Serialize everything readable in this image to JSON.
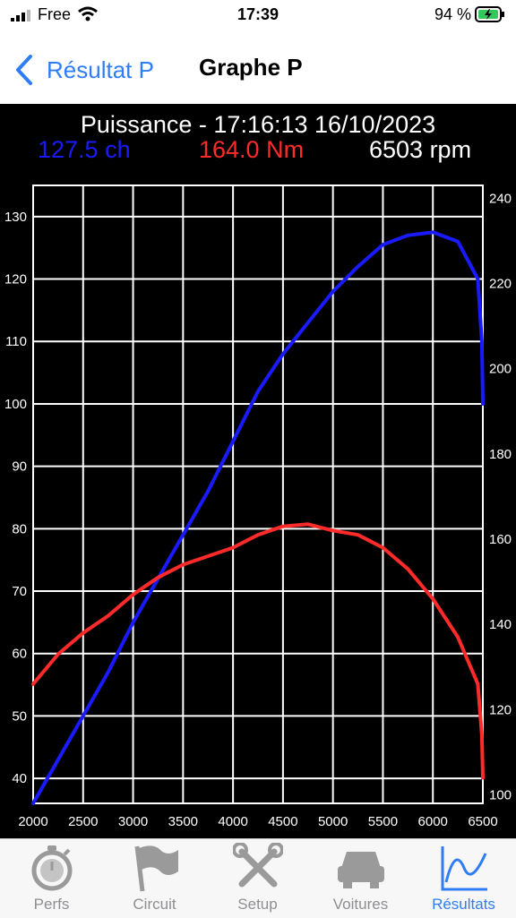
{
  "status_bar": {
    "carrier": "Free",
    "time": "17:39",
    "battery": "94 %"
  },
  "nav": {
    "back_label": "Résultat P",
    "title": "Graphe P"
  },
  "colors": {
    "power": "#1a1aff",
    "torque": "#ff2a2a",
    "accent": "#2f7df6",
    "battery": "#34c759"
  },
  "readout": {
    "title": "Puissance - 17:16:13 16/10/2023",
    "power": "127.5 ch",
    "torque": "164.0 Nm",
    "rpm": "6503 rpm"
  },
  "chart_data": {
    "type": "line",
    "x_ticks": [
      "2000",
      "2500",
      "3000",
      "3500",
      "4000",
      "4500",
      "5000",
      "5500",
      "6000",
      "6500"
    ],
    "y_left_ticks": [
      "40",
      "50",
      "60",
      "70",
      "80",
      "90",
      "100",
      "110",
      "120",
      "130"
    ],
    "y_right_ticks": [
      "100",
      "120",
      "140",
      "160",
      "180",
      "200",
      "220",
      "240"
    ],
    "xlim": [
      2000,
      6500
    ],
    "ylim_left": [
      36,
      135
    ],
    "ylim_right": [
      98,
      243
    ],
    "grid": true,
    "series": [
      {
        "axis": "left",
        "color": "#1a1aff",
        "x": [
          2000,
          2250,
          2500,
          2750,
          3000,
          3250,
          3500,
          3750,
          4000,
          4250,
          4500,
          4750,
          5000,
          5250,
          5500,
          5750,
          6000,
          6250,
          6450,
          6490,
          6500
        ],
        "y": [
          36,
          43,
          50,
          57,
          65,
          72,
          79,
          86,
          94,
          102,
          108,
          113,
          118,
          122,
          125.5,
          127,
          127.5,
          126,
          120,
          110,
          100
        ]
      },
      {
        "axis": "right",
        "color": "#ff2a2a",
        "x": [
          2000,
          2250,
          2500,
          2750,
          3000,
          3250,
          3500,
          3750,
          4000,
          4250,
          4500,
          4750,
          5000,
          5250,
          5500,
          5750,
          6000,
          6250,
          6450,
          6490,
          6500
        ],
        "y": [
          126,
          133,
          138,
          142,
          147,
          151,
          154,
          156,
          158,
          161,
          163,
          163.5,
          162,
          161,
          158,
          153,
          146,
          137,
          126,
          114,
          104
        ]
      }
    ]
  },
  "tabs": [
    {
      "label": "Perfs",
      "icon": "stopwatch-icon",
      "active": false
    },
    {
      "label": "Circuit",
      "icon": "flag-icon",
      "active": false
    },
    {
      "label": "Setup",
      "icon": "tools-icon",
      "active": false
    },
    {
      "label": "Voitures",
      "icon": "car-icon",
      "active": false
    },
    {
      "label": "Résultats",
      "icon": "chart-icon",
      "active": true
    }
  ]
}
